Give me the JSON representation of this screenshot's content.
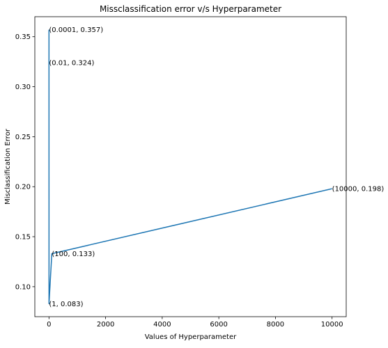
{
  "chart_data": {
    "type": "line",
    "title": "Missclassification error v/s Hyperparameter",
    "xlabel": "Values of Hyperparameter",
    "ylabel": "Misclassification Error",
    "xlim": [
      -500,
      10500
    ],
    "ylim": [
      0.07,
      0.37
    ],
    "grid": false,
    "legend": "none",
    "line_color": "#1f77b4",
    "x_ticks": [
      0,
      2000,
      4000,
      6000,
      8000,
      10000
    ],
    "x_tick_labels": [
      "0",
      "2000",
      "4000",
      "6000",
      "8000",
      "10000"
    ],
    "y_ticks": [
      0.1,
      0.15,
      0.2,
      0.25,
      0.3,
      0.35
    ],
    "y_tick_labels": [
      "0.10",
      "0.15",
      "0.20",
      "0.25",
      "0.30",
      "0.35"
    ],
    "series": [
      {
        "x": [
          0.0001,
          0.01,
          1,
          100,
          10000
        ],
        "y": [
          0.357,
          0.324,
          0.083,
          0.133,
          0.198
        ]
      }
    ],
    "annotations": [
      {
        "x": 0.0001,
        "y": 0.357,
        "text": "(0.0001, 0.357)"
      },
      {
        "x": 0.01,
        "y": 0.324,
        "text": "(0.01, 0.324)"
      },
      {
        "x": 1,
        "y": 0.083,
        "text": "(1, 0.083)"
      },
      {
        "x": 100,
        "y": 0.133,
        "text": "(100, 0.133)"
      },
      {
        "x": 10000,
        "y": 0.198,
        "text": "(10000, 0.198)"
      }
    ]
  }
}
